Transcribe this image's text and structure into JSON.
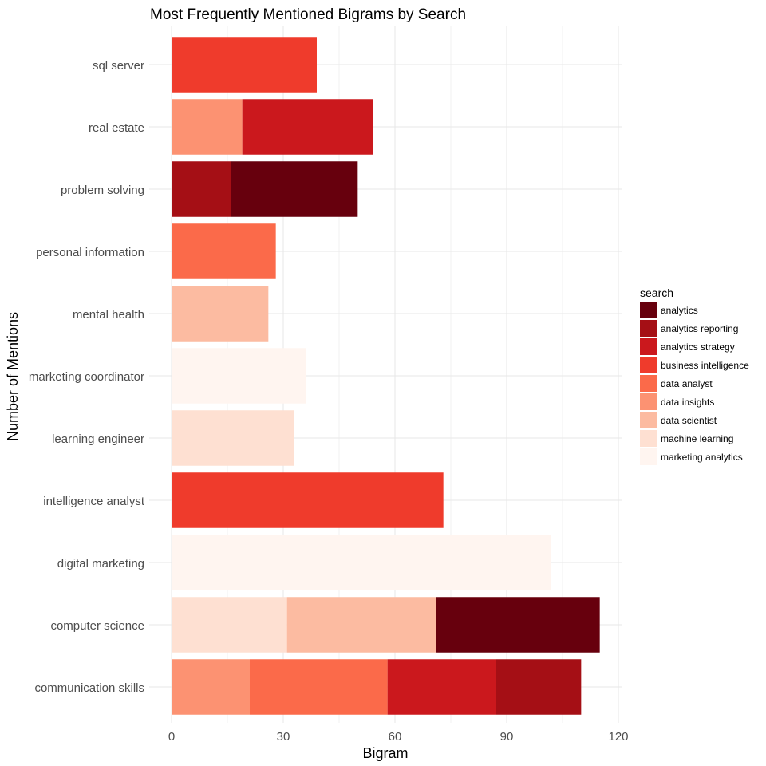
{
  "chart_data": {
    "type": "bar",
    "orientation": "horizontal",
    "stacked": true,
    "title": "Most Frequently Mentioned Bigrams by Search",
    "xlabel": "Bigram",
    "ylabel": "Number of Mentions",
    "xlim": [
      0,
      120
    ],
    "x_ticks": [
      0,
      30,
      60,
      90,
      120
    ],
    "grid": true,
    "legend_title": "search",
    "legend_position": "right",
    "categories": [
      "sql server",
      "real estate",
      "problem solving",
      "personal information",
      "mental health",
      "marketing coordinator",
      "learning engineer",
      "intelligence analyst",
      "digital marketing",
      "computer science",
      "communication skills"
    ],
    "series": [
      {
        "name": "analytics",
        "color": "#67000d",
        "values": [
          0,
          0,
          34,
          0,
          0,
          0,
          0,
          0,
          0,
          44,
          0
        ]
      },
      {
        "name": "analytics reporting",
        "color": "#a50f15",
        "values": [
          0,
          0,
          16,
          0,
          0,
          0,
          0,
          0,
          0,
          0,
          23
        ]
      },
      {
        "name": "analytics strategy",
        "color": "#cb181d",
        "values": [
          0,
          35,
          0,
          0,
          0,
          0,
          0,
          0,
          0,
          0,
          29
        ]
      },
      {
        "name": "business intelligence",
        "color": "#ef3b2c",
        "values": [
          39,
          0,
          0,
          0,
          0,
          0,
          0,
          73,
          0,
          0,
          0
        ]
      },
      {
        "name": "data analyst",
        "color": "#fb6a4a",
        "values": [
          0,
          0,
          0,
          28,
          0,
          0,
          0,
          0,
          0,
          0,
          37
        ]
      },
      {
        "name": "data insights",
        "color": "#fc9272",
        "values": [
          0,
          19,
          0,
          0,
          0,
          0,
          0,
          0,
          0,
          0,
          21
        ]
      },
      {
        "name": "data scientist",
        "color": "#fcbba1",
        "values": [
          0,
          0,
          0,
          0,
          26,
          0,
          0,
          0,
          0,
          40,
          0
        ]
      },
      {
        "name": "machine learning",
        "color": "#fee0d2",
        "values": [
          0,
          0,
          0,
          0,
          0,
          0,
          33,
          0,
          0,
          31,
          0
        ]
      },
      {
        "name": "marketing analytics",
        "color": "#fff5f0",
        "values": [
          0,
          0,
          0,
          0,
          0,
          36,
          0,
          0,
          102,
          0,
          0
        ]
      }
    ]
  }
}
